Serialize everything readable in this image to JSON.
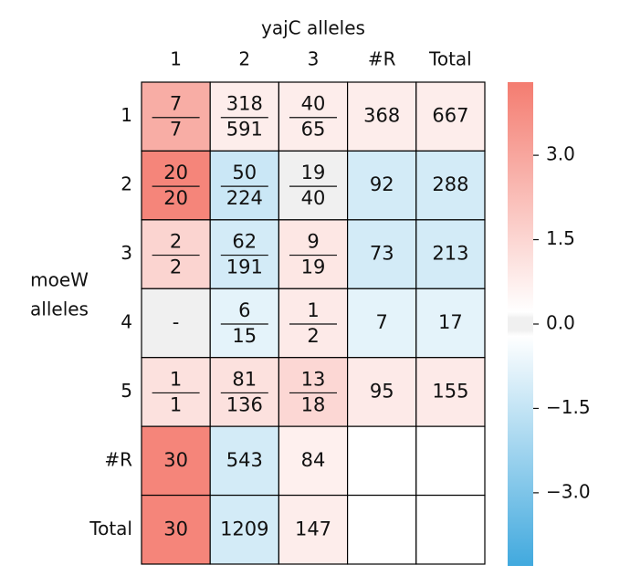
{
  "chart_data": {
    "type": "heatmap",
    "title": "yajC alleles",
    "ylabel": [
      "moeW",
      "alleles"
    ],
    "columns": [
      "1",
      "2",
      "3",
      "#R",
      "Total"
    ],
    "rows": [
      "1",
      "2",
      "3",
      "4",
      "5",
      "#R",
      "Total"
    ],
    "values": [
      [
        2.7,
        0.6,
        0.6,
        0.6,
        0.6
      ],
      [
        4.0,
        -1.2,
        0,
        -1.0,
        -1.0
      ],
      [
        1.4,
        -1.0,
        0.8,
        -1.0,
        -1.0
      ],
      [
        0,
        -0.6,
        0.7,
        -0.6,
        -0.6
      ],
      [
        1.0,
        1.0,
        1.3,
        0.7,
        0.7
      ],
      [
        4.0,
        -1.0,
        0.5,
        null,
        null
      ],
      [
        4.0,
        -1.0,
        0.6,
        null,
        null
      ]
    ],
    "annotations": [
      [
        [
          7,
          7
        ],
        [
          318,
          591
        ],
        [
          40,
          65
        ],
        368,
        667
      ],
      [
        [
          20,
          20
        ],
        [
          50,
          224
        ],
        [
          19,
          40
        ],
        92,
        288
      ],
      [
        [
          2,
          2
        ],
        [
          62,
          191
        ],
        [
          9,
          19
        ],
        73,
        213
      ],
      [
        "-",
        [
          6,
          15
        ],
        [
          1,
          2
        ],
        7,
        17
      ],
      [
        [
          1,
          1
        ],
        [
          81,
          136
        ],
        [
          13,
          18
        ],
        95,
        155
      ],
      [
        30,
        543,
        84,
        null,
        null
      ],
      [
        30,
        1209,
        147,
        null,
        null
      ]
    ],
    "cmap": {
      "low": "#41a9de",
      "mid": "#f0f0f0",
      "high": "#f47c70"
    },
    "clim": [
      -4.3,
      4.3
    ],
    "cticks": [
      {
        "value": -3.0,
        "label": "−3.0"
      },
      {
        "value": -1.5,
        "label": "−1.5"
      },
      {
        "value": 0.0,
        "label": "0.0"
      },
      {
        "value": 1.5,
        "label": "1.5"
      },
      {
        "value": 3.0,
        "label": "3.0"
      }
    ]
  }
}
